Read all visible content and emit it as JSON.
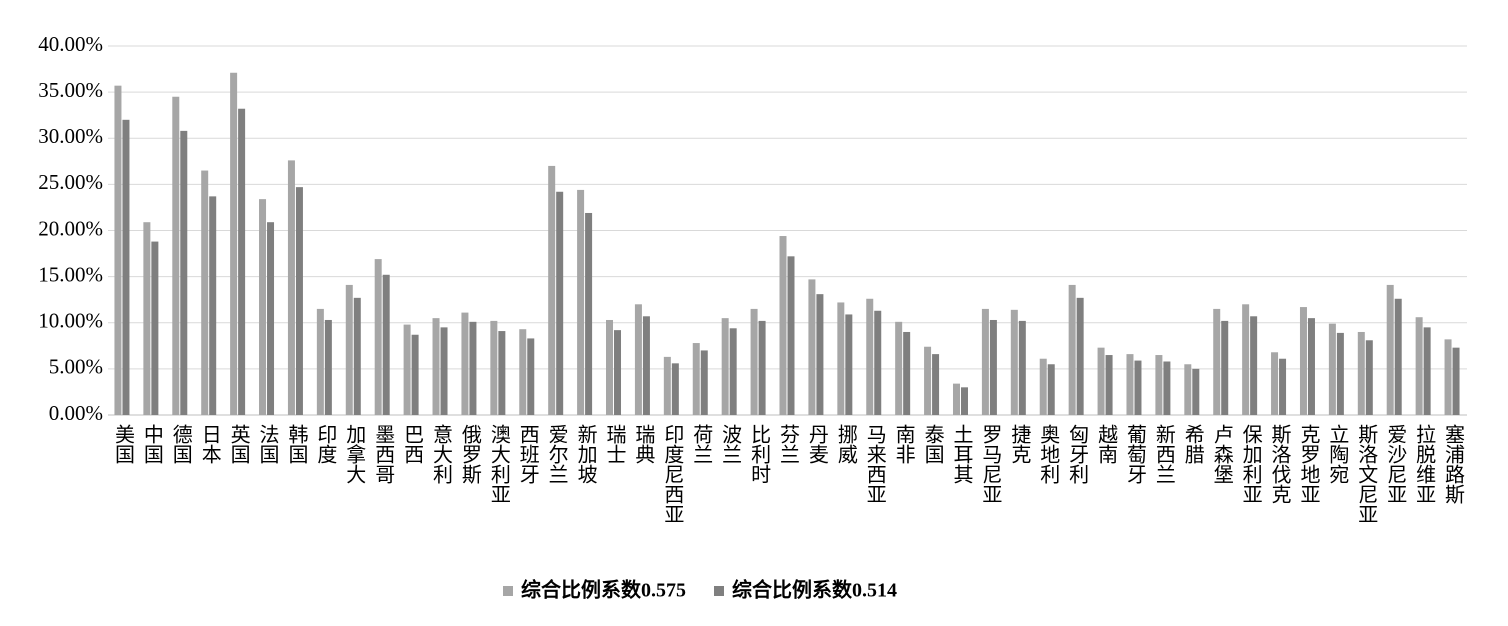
{
  "chart_data": {
    "type": "bar",
    "categories": [
      "美国",
      "中国",
      "德国",
      "日本",
      "英国",
      "法国",
      "韩国",
      "印度",
      "加拿大",
      "墨西哥",
      "巴西",
      "意大利",
      "俄罗斯",
      "澳大利亚",
      "西班牙",
      "爱尔兰",
      "新加坡",
      "瑞士",
      "瑞典",
      "印度尼西亚",
      "荷兰",
      "波兰",
      "比利时",
      "芬兰",
      "丹麦",
      "挪威",
      "马来西亚",
      "南非",
      "泰国",
      "土耳其",
      "罗马尼亚",
      "捷克",
      "奥地利",
      "匈牙利",
      "越南",
      "葡萄牙",
      "新西兰",
      "希腊",
      "卢森堡",
      "保加利亚",
      "斯洛伐克",
      "克罗地亚",
      "立陶宛",
      "斯洛文尼亚",
      "爱沙尼亚",
      "拉脱维亚",
      "塞浦路斯"
    ],
    "series": [
      {
        "name": "综合比例系数0.575",
        "color": "#a6a6a6",
        "values": [
          35.7,
          20.9,
          34.5,
          26.5,
          37.1,
          23.4,
          27.6,
          11.5,
          14.1,
          16.9,
          9.8,
          10.5,
          11.1,
          10.2,
          9.3,
          27.0,
          24.4,
          10.3,
          12.0,
          6.3,
          7.8,
          10.5,
          11.5,
          19.4,
          14.7,
          12.2,
          12.6,
          10.1,
          7.4,
          3.4,
          11.5,
          11.4,
          6.1,
          14.1,
          7.3,
          6.6,
          6.5,
          5.5,
          11.5,
          12.0,
          6.8,
          11.7,
          9.9,
          9.0,
          14.1,
          10.6,
          8.2
        ]
      },
      {
        "name": "综合比例系数0.514",
        "color": "#7f7f7f",
        "values": [
          32.0,
          18.8,
          30.8,
          23.7,
          33.2,
          20.9,
          24.7,
          10.3,
          12.7,
          15.2,
          8.7,
          9.5,
          10.1,
          9.1,
          8.3,
          24.2,
          21.9,
          9.2,
          10.7,
          5.6,
          7.0,
          9.4,
          10.2,
          17.2,
          13.1,
          10.9,
          11.3,
          9.0,
          6.6,
          3.0,
          10.3,
          10.2,
          5.5,
          12.7,
          6.5,
          5.9,
          5.8,
          5.0,
          10.2,
          10.7,
          6.1,
          10.5,
          8.9,
          8.1,
          12.6,
          9.5,
          7.3
        ]
      }
    ],
    "ylim": [
      0,
      40
    ],
    "yticks": [
      {
        "value": 0,
        "label": "0.00%"
      },
      {
        "value": 5,
        "label": "5.00%"
      },
      {
        "value": 10,
        "label": "10.00%"
      },
      {
        "value": 15,
        "label": "15.00%"
      },
      {
        "value": 20,
        "label": "20.00%"
      },
      {
        "value": 25,
        "label": "25.00%"
      },
      {
        "value": 30,
        "label": "30.00%"
      },
      {
        "value": 35,
        "label": "35.00%"
      },
      {
        "value": 40,
        "label": "40.00%"
      }
    ],
    "grid": true,
    "legend": "bottom"
  }
}
